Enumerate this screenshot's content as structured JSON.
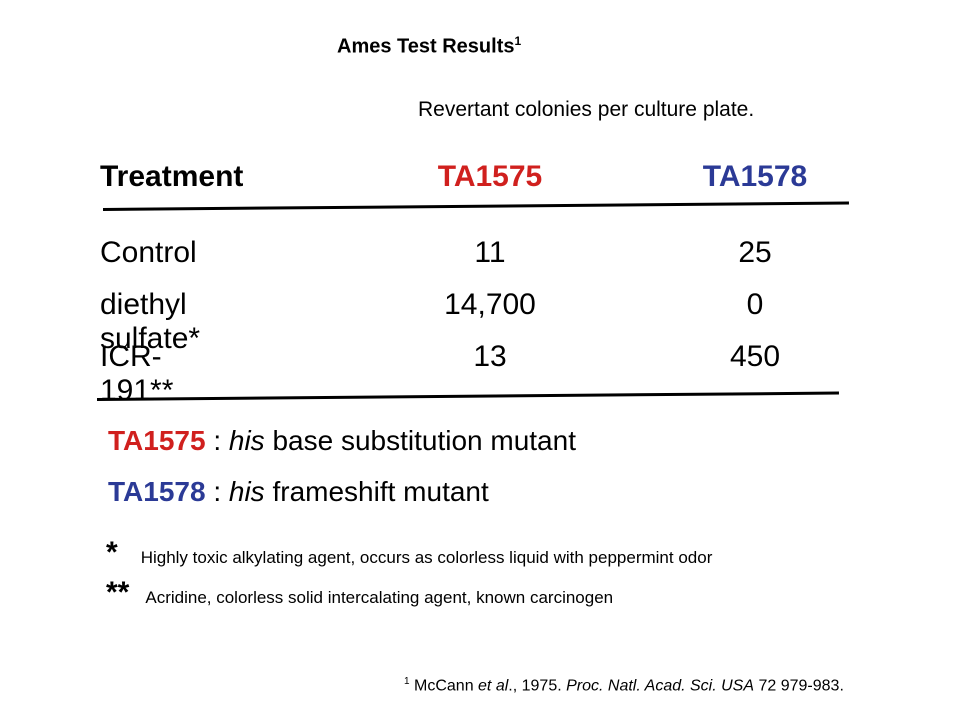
{
  "title": {
    "text": "Ames Test Results",
    "sup": "1"
  },
  "subtitle": "Revertant colonies per culture plate.",
  "table": {
    "headers": [
      "Treatment",
      "TA1575",
      "TA1578"
    ],
    "rows": [
      {
        "treatment": "Control",
        "ta1575": "11",
        "ta1578": "25"
      },
      {
        "treatment": "diethyl sulfate*",
        "ta1575": "14,700",
        "ta1578": "0"
      },
      {
        "treatment": "ICR-191**",
        "ta1575": "13",
        "ta1578": "450"
      }
    ]
  },
  "definitions": [
    {
      "strain": "TA1575",
      "sep": " : ",
      "italic": "his",
      "rest": " base substitution mutant"
    },
    {
      "strain": "TA1578",
      "sep": " : ",
      "italic": "his",
      "rest": " frameshift mutant"
    }
  ],
  "notes": [
    {
      "mark": "*",
      "text": "Highly toxic alkylating agent, occurs as colorless liquid with peppermint odor"
    },
    {
      "mark": "**",
      "text": "Acridine, colorless solid intercalating agent, known carcinogen"
    }
  ],
  "reference": {
    "sup": "1",
    "authors": " McCann ",
    "etal": "et al",
    "year": "., 1975. ",
    "journal": "Proc. Natl. Acad. Sci. USA",
    "citation": " 72 979-983."
  },
  "colors": {
    "ta1575": "#d0201e",
    "ta1578": "#2b3a96"
  }
}
